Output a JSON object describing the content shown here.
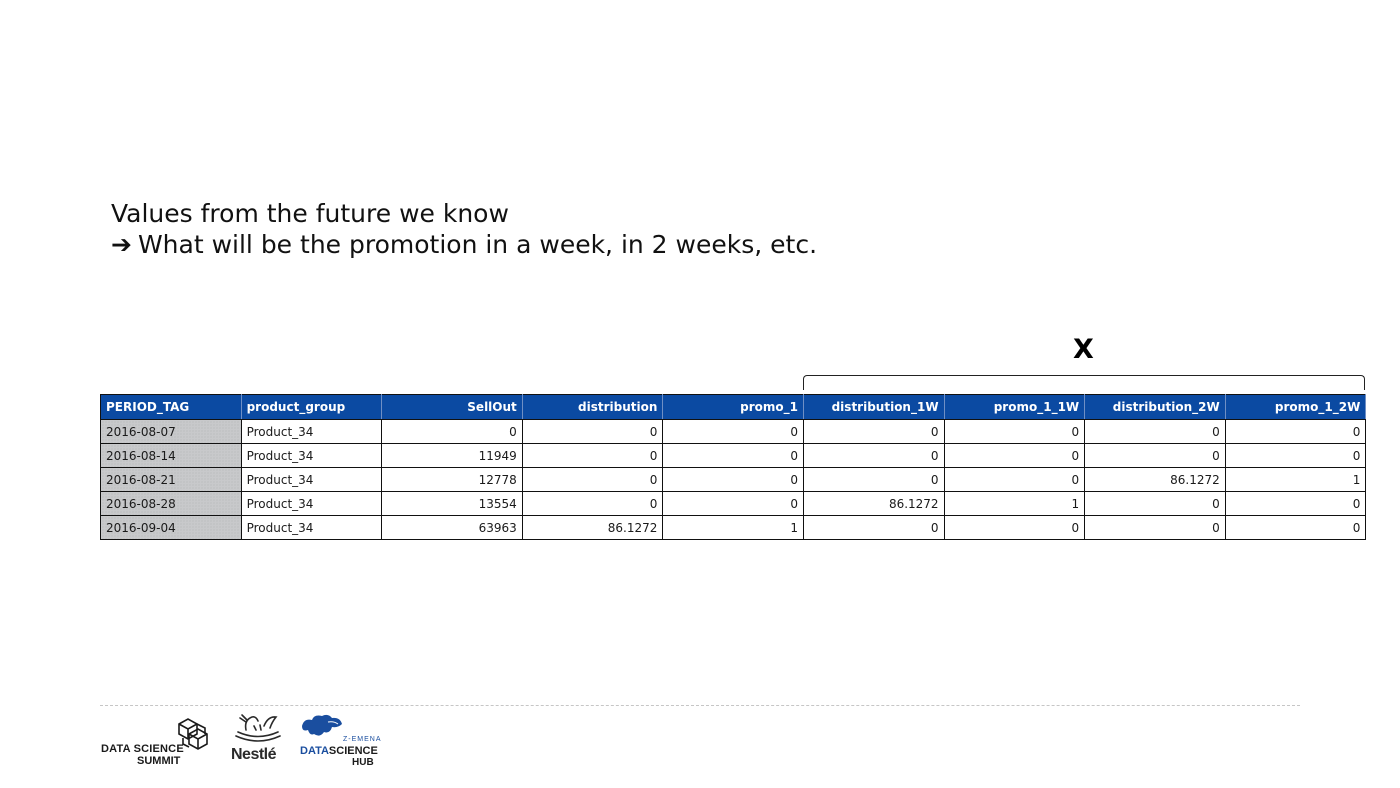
{
  "heading": {
    "line1": "Values from the future we know",
    "arrow": "➔",
    "line2": "What will be the promotion in a week, in 2 weeks, etc."
  },
  "bracket_label": "X",
  "table": {
    "headers": [
      "PERIOD_TAG",
      "product_group",
      "SellOut",
      "distribution",
      "promo_1",
      "distribution_1W",
      "promo_1_1W",
      "distribution_2W",
      "promo_1_2W"
    ],
    "rows": [
      [
        "2016-08-07",
        "Product_34",
        "0",
        "0",
        "0",
        "0",
        "0",
        "0",
        "0"
      ],
      [
        "2016-08-14",
        "Product_34",
        "11949",
        "0",
        "0",
        "0",
        "0",
        "0",
        "0"
      ],
      [
        "2016-08-21",
        "Product_34",
        "12778",
        "0",
        "0",
        "0",
        "0",
        "86.1272",
        "1"
      ],
      [
        "2016-08-28",
        "Product_34",
        "13554",
        "0",
        "0",
        "86.1272",
        "1",
        "0",
        "0"
      ],
      [
        "2016-09-04",
        "Product_34",
        "63963",
        "86.1272",
        "1",
        "0",
        "0",
        "0",
        "0"
      ]
    ]
  },
  "logos": {
    "dss_line1": "DATA SCIENCE",
    "dss_line2": "SUMMIT",
    "nestle": "Nestlé",
    "hub_top": "Z-EMENA",
    "hub_data": "DATA",
    "hub_science": "SCIENCE",
    "hub_bottom": "HUB"
  },
  "colors": {
    "header_bg": "#0b4aa2",
    "header_text": "#ffffff",
    "period_cell_bg": "#c8c9cb",
    "hub_blue": "#1a4e9f"
  },
  "icons": [
    "cube-icon",
    "bird-nest-icon",
    "europe-map-icon"
  ]
}
